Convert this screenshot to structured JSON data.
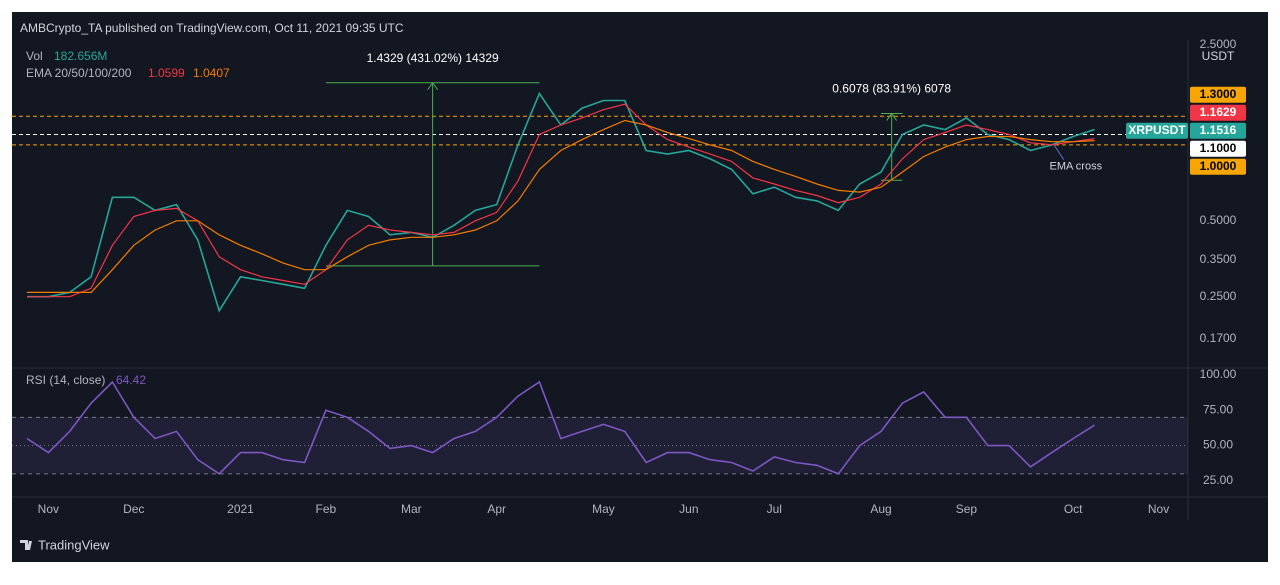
{
  "header": "AMBCrypto_TA published on TradingView.com, Oct 11, 2021 09:35 UTC",
  "footer": "TradingView",
  "chart_data": [
    {
      "type": "line",
      "scale": "log",
      "categories": [
        null,
        "Nov",
        null,
        null,
        null,
        "Dec",
        null,
        null,
        null,
        null,
        "2021",
        null,
        null,
        null,
        "Feb",
        null,
        null,
        null,
        "Mar",
        null,
        null,
        null,
        "Apr",
        null,
        null,
        null,
        null,
        "May",
        null,
        null,
        null,
        "Jun",
        null,
        null,
        null,
        "Jul",
        null,
        null,
        null,
        null,
        "Aug",
        null,
        null,
        null,
        "Sep",
        null,
        null,
        null,
        null,
        "Oct",
        null,
        null,
        null,
        "Nov"
      ],
      "series": [
        {
          "name": "XRPUSDT",
          "color": "#26a69a",
          "values": [
            0.25,
            0.25,
            0.26,
            0.3,
            0.62,
            0.62,
            0.55,
            0.58,
            0.42,
            0.22,
            0.3,
            0.29,
            0.28,
            0.27,
            0.4,
            0.55,
            0.52,
            0.44,
            0.45,
            0.43,
            0.48,
            0.55,
            0.58,
            1.0,
            1.6,
            1.2,
            1.4,
            1.5,
            1.5,
            0.95,
            0.92,
            0.95,
            0.88,
            0.8,
            0.64,
            0.68,
            0.62,
            0.6,
            0.55,
            0.7,
            0.78,
            1.1,
            1.2,
            1.15,
            1.28,
            1.1,
            1.05,
            0.95,
            1.0,
            1.08,
            1.1516,
            null,
            null,
            null
          ]
        },
        {
          "color": "#f23645",
          "values": [
            0.25,
            0.25,
            0.25,
            0.27,
            0.4,
            0.52,
            0.55,
            0.56,
            0.5,
            0.36,
            0.32,
            0.3,
            0.29,
            0.28,
            0.32,
            0.42,
            0.48,
            0.46,
            0.45,
            0.44,
            0.45,
            0.5,
            0.54,
            0.72,
            1.1,
            1.2,
            1.28,
            1.38,
            1.45,
            1.2,
            1.05,
            0.98,
            0.92,
            0.86,
            0.74,
            0.7,
            0.66,
            0.63,
            0.59,
            0.62,
            0.7,
            0.88,
            1.05,
            1.12,
            1.2,
            1.15,
            1.1,
            1.02,
            1.0,
            1.03,
            1.0599,
            null,
            null,
            null
          ]
        },
        {
          "color": "#f57c00",
          "values": [
            0.26,
            0.26,
            0.26,
            0.26,
            0.32,
            0.4,
            0.46,
            0.5,
            0.5,
            0.44,
            0.4,
            0.37,
            0.34,
            0.32,
            0.32,
            0.36,
            0.4,
            0.42,
            0.43,
            0.43,
            0.44,
            0.46,
            0.5,
            0.6,
            0.8,
            0.95,
            1.05,
            1.15,
            1.25,
            1.2,
            1.12,
            1.06,
            1.0,
            0.95,
            0.86,
            0.8,
            0.75,
            0.7,
            0.66,
            0.65,
            0.68,
            0.78,
            0.9,
            0.98,
            1.05,
            1.08,
            1.08,
            1.05,
            1.03,
            1.03,
            1.0407,
            null,
            null,
            null
          ]
        }
      ],
      "ylim": [
        0.134,
        3.13
      ],
      "yticks": [
        {
          "value": 2.5,
          "label": "2.5000"
        },
        {
          "value": 0.5,
          "label": "0.5000"
        },
        {
          "value": 0.35,
          "label": "0.3500"
        },
        {
          "value": 0.25,
          "label": "0.2500"
        },
        {
          "value": 0.17,
          "label": "0.1700"
        }
      ],
      "axis_unit": "USDT",
      "volume": {
        "name": "Vol",
        "value": 182656000,
        "label": "182.656M"
      },
      "ema_legend": "EMA 20/50/100/200",
      "price_labels": [
        {
          "value": 1.3,
          "label": "1.3000",
          "color": "#f7a600",
          "text_color": "#000000",
          "line": "#f7a600"
        },
        {
          "value": 1.1629,
          "color": "#f23645",
          "text_color": "#ffffff"
        },
        {
          "value": 1.1,
          "label": "1.1000",
          "color": "#ffffff",
          "text_color": "#000000",
          "line": "#ffffff"
        },
        {
          "value": 1.0,
          "label": "1.0000",
          "color": "#f7a600",
          "text_color": "#000000",
          "line": "#f7a600"
        }
      ],
      "measures": [
        {
          "label": "1.4329 (431.02%) 14329",
          "from": 0.3314,
          "to": 1.7643,
          "start": 14,
          "end": 24
        },
        {
          "label": "0.6078 (83.91%) 6078",
          "from": 0.724,
          "to": 1.3318,
          "start": 40,
          "end": 41
        }
      ],
      "annotations": [
        {
          "text": "EMA cross",
          "at": 48,
          "value": 1.03
        }
      ]
    },
    {
      "type": "line",
      "title": "RSI (14, close)",
      "series": [
        {
          "color": "#7e57c2",
          "values": [
            55,
            45,
            60,
            80,
            95,
            70,
            55,
            60,
            40,
            30,
            45,
            45,
            40,
            38,
            75,
            70,
            60,
            48,
            50,
            45,
            55,
            60,
            70,
            85,
            95,
            55,
            60,
            65,
            60,
            38,
            45,
            45,
            40,
            38,
            32,
            42,
            38,
            36,
            30,
            50,
            60,
            80,
            88,
            70,
            70,
            50,
            50,
            35,
            45,
            55,
            64.42,
            null,
            null,
            null
          ]
        }
      ],
      "band": [
        30,
        70
      ],
      "midline": 50,
      "ylim": [
        15,
        103.5
      ],
      "yticks": [
        {
          "value": 100,
          "label": "100.00"
        },
        {
          "value": 75,
          "label": "75.00"
        },
        {
          "value": 50,
          "label": "50.00"
        },
        {
          "value": 25,
          "label": "25.00"
        }
      ]
    }
  ]
}
